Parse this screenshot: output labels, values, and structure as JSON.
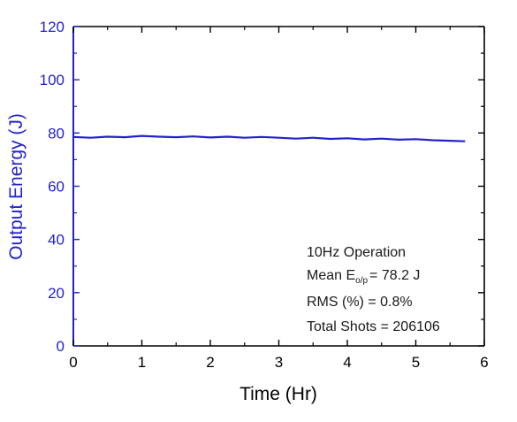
{
  "chart_data": {
    "type": "line",
    "xlabel": "Time (Hr)",
    "ylabel": "Output Energy (J)",
    "xlim": [
      0,
      6
    ],
    "ylim": [
      0,
      120
    ],
    "x_ticks": [
      "0",
      "1",
      "2",
      "3",
      "4",
      "5",
      "6"
    ],
    "y_ticks": [
      "0",
      "20",
      "40",
      "60",
      "80",
      "100",
      "120"
    ],
    "grid": false,
    "series": [
      {
        "color": "#2222cc",
        "x": [
          0.0,
          0.25,
          0.5,
          0.75,
          1.0,
          1.25,
          1.5,
          1.75,
          2.0,
          2.25,
          2.5,
          2.75,
          3.0,
          3.25,
          3.5,
          3.75,
          4.0,
          4.25,
          4.5,
          4.75,
          5.0,
          5.25,
          5.5,
          5.72
        ],
        "y": [
          78.5,
          78.2,
          78.6,
          78.4,
          78.9,
          78.6,
          78.4,
          78.7,
          78.3,
          78.6,
          78.2,
          78.5,
          78.2,
          77.9,
          78.2,
          77.8,
          78.0,
          77.6,
          77.9,
          77.5,
          77.7,
          77.3,
          77.1,
          76.9
        ]
      }
    ],
    "annotation": {
      "line1": "10Hz Operation",
      "line2_prefix": "Mean E",
      "line2_sub": "o/p",
      "line2_suffix": "= 78.2 J",
      "line3": "RMS (%) = 0.8%",
      "line4": "Total Shots = 206106"
    },
    "colors": {
      "y_axis": "#2222cc",
      "x_axis": "#000000",
      "frame": "#000000",
      "annotation_text": "#1a1a1a"
    }
  }
}
